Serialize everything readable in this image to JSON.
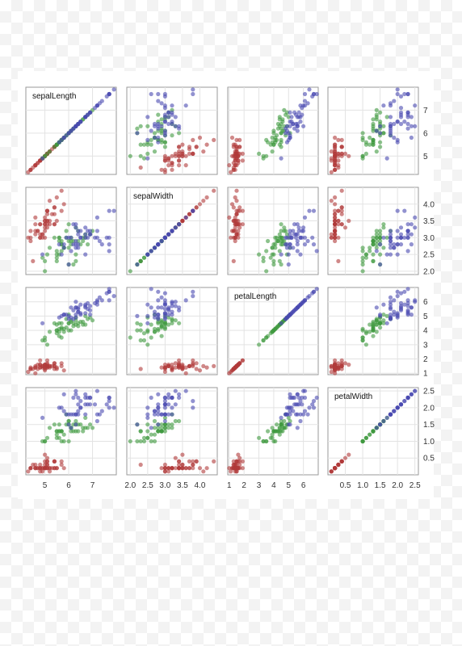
{
  "chart_data": {
    "type": "scatter",
    "title": "",
    "layout": "scatterplot-matrix",
    "variables": [
      "sepalLength",
      "sepalWidth",
      "petalLength",
      "petalWidth"
    ],
    "ranges": {
      "sepalLength": [
        4.2,
        8.0
      ],
      "sepalWidth": [
        1.9,
        4.5
      ],
      "petalLength": [
        0.9,
        7.0
      ],
      "petalWidth": [
        0.0,
        2.6
      ]
    },
    "ticks": {
      "sepalLength": [
        "5",
        "6",
        "7"
      ],
      "sepalWidth": [
        "2.0",
        "2.5",
        "3.0",
        "3.5",
        "4.0"
      ],
      "petalLength": [
        "1",
        "2",
        "3",
        "4",
        "5",
        "6"
      ],
      "petalWidth": [
        "0.5",
        "1.0",
        "1.5",
        "2.0",
        "2.5"
      ]
    },
    "grid": true,
    "series": [
      {
        "color": "#b03a3a",
        "points": [
          [
            5.1,
            3.5,
            1.4,
            0.2
          ],
          [
            4.9,
            3.0,
            1.4,
            0.2
          ],
          [
            4.7,
            3.2,
            1.3,
            0.2
          ],
          [
            4.6,
            3.1,
            1.5,
            0.2
          ],
          [
            5.0,
            3.6,
            1.4,
            0.2
          ],
          [
            5.4,
            3.9,
            1.7,
            0.4
          ],
          [
            4.6,
            3.4,
            1.4,
            0.3
          ],
          [
            5.0,
            3.4,
            1.5,
            0.2
          ],
          [
            4.4,
            2.9,
            1.4,
            0.2
          ],
          [
            4.9,
            3.1,
            1.5,
            0.1
          ],
          [
            5.4,
            3.7,
            1.5,
            0.2
          ],
          [
            4.8,
            3.4,
            1.6,
            0.2
          ],
          [
            4.8,
            3.0,
            1.4,
            0.1
          ],
          [
            4.3,
            3.0,
            1.1,
            0.1
          ],
          [
            5.8,
            4.0,
            1.2,
            0.2
          ],
          [
            5.7,
            4.4,
            1.5,
            0.4
          ],
          [
            5.4,
            3.9,
            1.3,
            0.4
          ],
          [
            5.1,
            3.5,
            1.4,
            0.3
          ],
          [
            5.7,
            3.8,
            1.7,
            0.3
          ],
          [
            5.1,
            3.8,
            1.5,
            0.3
          ],
          [
            5.4,
            3.4,
            1.7,
            0.2
          ],
          [
            5.1,
            3.7,
            1.5,
            0.4
          ],
          [
            4.6,
            3.6,
            1.0,
            0.2
          ],
          [
            5.1,
            3.3,
            1.7,
            0.5
          ],
          [
            4.8,
            3.4,
            1.9,
            0.2
          ],
          [
            5.0,
            3.0,
            1.6,
            0.2
          ],
          [
            5.0,
            3.4,
            1.6,
            0.4
          ],
          [
            5.2,
            3.5,
            1.5,
            0.2
          ],
          [
            5.2,
            3.4,
            1.4,
            0.2
          ],
          [
            4.7,
            3.2,
            1.6,
            0.2
          ],
          [
            4.8,
            3.1,
            1.6,
            0.2
          ],
          [
            5.4,
            3.4,
            1.5,
            0.4
          ],
          [
            5.2,
            4.1,
            1.5,
            0.1
          ],
          [
            5.5,
            4.2,
            1.4,
            0.2
          ],
          [
            4.9,
            3.1,
            1.5,
            0.2
          ],
          [
            5.0,
            3.2,
            1.2,
            0.2
          ],
          [
            5.5,
            3.5,
            1.3,
            0.2
          ],
          [
            4.4,
            3.0,
            1.3,
            0.2
          ],
          [
            5.1,
            3.4,
            1.5,
            0.2
          ],
          [
            5.0,
            3.5,
            1.3,
            0.3
          ],
          [
            4.5,
            2.3,
            1.3,
            0.3
          ],
          [
            4.4,
            3.2,
            1.3,
            0.2
          ],
          [
            5.0,
            3.5,
            1.6,
            0.6
          ],
          [
            5.1,
            3.8,
            1.9,
            0.4
          ],
          [
            4.8,
            3.0,
            1.4,
            0.3
          ],
          [
            5.1,
            3.8,
            1.6,
            0.2
          ],
          [
            4.6,
            3.2,
            1.4,
            0.2
          ],
          [
            5.3,
            3.7,
            1.5,
            0.2
          ],
          [
            5.0,
            3.3,
            1.4,
            0.2
          ]
        ]
      },
      {
        "color": "#3f9a3f",
        "points": [
          [
            7.0,
            3.2,
            4.7,
            1.4
          ],
          [
            6.4,
            3.2,
            4.5,
            1.5
          ],
          [
            6.9,
            3.1,
            4.9,
            1.5
          ],
          [
            5.5,
            2.3,
            4.0,
            1.3
          ],
          [
            6.5,
            2.8,
            4.6,
            1.5
          ],
          [
            5.7,
            2.8,
            4.5,
            1.3
          ],
          [
            6.3,
            3.3,
            4.7,
            1.6
          ],
          [
            4.9,
            2.4,
            3.3,
            1.0
          ],
          [
            6.6,
            2.9,
            4.6,
            1.3
          ],
          [
            5.2,
            2.7,
            3.9,
            1.4
          ],
          [
            5.0,
            2.0,
            3.5,
            1.0
          ],
          [
            5.9,
            3.0,
            4.2,
            1.5
          ],
          [
            6.0,
            2.2,
            4.0,
            1.0
          ],
          [
            6.1,
            2.9,
            4.7,
            1.4
          ],
          [
            5.6,
            2.9,
            3.6,
            1.3
          ],
          [
            6.7,
            3.1,
            4.4,
            1.4
          ],
          [
            5.6,
            3.0,
            4.5,
            1.5
          ],
          [
            5.8,
            2.7,
            4.1,
            1.0
          ],
          [
            6.2,
            2.2,
            4.5,
            1.5
          ],
          [
            5.6,
            2.5,
            3.9,
            1.1
          ],
          [
            5.9,
            3.2,
            4.8,
            1.8
          ],
          [
            6.1,
            2.8,
            4.0,
            1.3
          ],
          [
            6.3,
            2.5,
            4.9,
            1.5
          ],
          [
            6.4,
            2.9,
            4.3,
            1.3
          ],
          [
            6.6,
            3.0,
            4.4,
            1.4
          ],
          [
            6.8,
            2.8,
            4.8,
            1.4
          ],
          [
            6.7,
            3.0,
            5.0,
            1.7
          ],
          [
            6.0,
            2.9,
            4.5,
            1.5
          ],
          [
            5.7,
            2.6,
            3.5,
            1.0
          ],
          [
            5.5,
            2.4,
            3.8,
            1.1
          ],
          [
            5.8,
            2.7,
            3.9,
            1.2
          ],
          [
            6.0,
            2.7,
            5.1,
            1.6
          ],
          [
            5.4,
            3.0,
            4.5,
            1.5
          ],
          [
            6.0,
            3.4,
            4.5,
            1.6
          ],
          [
            6.3,
            2.3,
            4.4,
            1.3
          ],
          [
            5.6,
            3.0,
            4.1,
            1.3
          ],
          [
            5.5,
            2.5,
            4.0,
            1.3
          ],
          [
            5.5,
            2.6,
            4.4,
            1.2
          ],
          [
            6.1,
            3.0,
            4.6,
            1.4
          ],
          [
            5.0,
            2.3,
            3.3,
            1.0
          ],
          [
            5.7,
            2.9,
            4.2,
            1.3
          ],
          [
            6.2,
            2.9,
            4.3,
            1.3
          ],
          [
            5.1,
            2.5,
            3.0,
            1.1
          ],
          [
            5.7,
            2.8,
            4.1,
            1.3
          ]
        ]
      },
      {
        "color": "#4a4ab0",
        "points": [
          [
            6.3,
            3.3,
            6.0,
            2.5
          ],
          [
            5.8,
            2.7,
            5.1,
            1.9
          ],
          [
            7.1,
            3.0,
            5.9,
            2.1
          ],
          [
            6.3,
            2.9,
            5.6,
            1.8
          ],
          [
            6.5,
            3.0,
            5.8,
            2.2
          ],
          [
            7.6,
            3.0,
            6.6,
            2.1
          ],
          [
            4.9,
            2.5,
            4.5,
            1.7
          ],
          [
            7.3,
            2.9,
            6.3,
            1.8
          ],
          [
            6.7,
            2.5,
            5.8,
            1.8
          ],
          [
            7.2,
            3.6,
            6.1,
            2.5
          ],
          [
            6.5,
            3.2,
            5.1,
            2.0
          ],
          [
            6.4,
            2.7,
            5.3,
            1.9
          ],
          [
            6.8,
            3.0,
            5.5,
            2.1
          ],
          [
            5.7,
            2.5,
            5.0,
            2.0
          ],
          [
            5.8,
            2.8,
            5.1,
            2.4
          ],
          [
            6.4,
            3.2,
            5.3,
            2.3
          ],
          [
            7.7,
            3.8,
            6.7,
            2.2
          ],
          [
            7.7,
            2.6,
            6.9,
            2.3
          ],
          [
            6.0,
            2.2,
            5.0,
            1.5
          ],
          [
            6.9,
            3.2,
            5.7,
            2.3
          ],
          [
            5.6,
            2.8,
            4.9,
            2.0
          ],
          [
            7.7,
            2.8,
            6.7,
            2.0
          ],
          [
            6.3,
            2.7,
            4.9,
            1.8
          ],
          [
            6.7,
            3.3,
            5.7,
            2.1
          ],
          [
            7.2,
            3.2,
            6.0,
            1.8
          ],
          [
            6.2,
            2.8,
            4.8,
            1.8
          ],
          [
            6.1,
            3.0,
            4.9,
            1.8
          ],
          [
            6.4,
            2.8,
            5.6,
            2.1
          ],
          [
            7.2,
            3.0,
            5.8,
            1.6
          ],
          [
            7.4,
            2.8,
            6.1,
            1.9
          ],
          [
            7.9,
            3.8,
            6.4,
            2.0
          ],
          [
            6.3,
            2.8,
            5.1,
            1.5
          ],
          [
            6.1,
            2.6,
            5.6,
            1.4
          ],
          [
            7.7,
            3.0,
            6.1,
            2.3
          ],
          [
            6.3,
            3.4,
            5.6,
            2.4
          ],
          [
            6.4,
            3.1,
            5.5,
            1.8
          ],
          [
            6.0,
            3.0,
            4.8,
            1.8
          ],
          [
            6.9,
            3.1,
            5.4,
            2.1
          ],
          [
            6.7,
            3.1,
            5.6,
            2.4
          ],
          [
            6.9,
            3.1,
            5.1,
            2.3
          ],
          [
            6.8,
            3.2,
            5.9,
            2.3
          ],
          [
            6.7,
            3.0,
            5.2,
            2.3
          ],
          [
            6.5,
            3.0,
            5.2,
            2.0
          ],
          [
            6.2,
            3.4,
            5.4,
            2.3
          ],
          [
            5.9,
            3.0,
            5.1,
            1.8
          ]
        ]
      }
    ]
  }
}
